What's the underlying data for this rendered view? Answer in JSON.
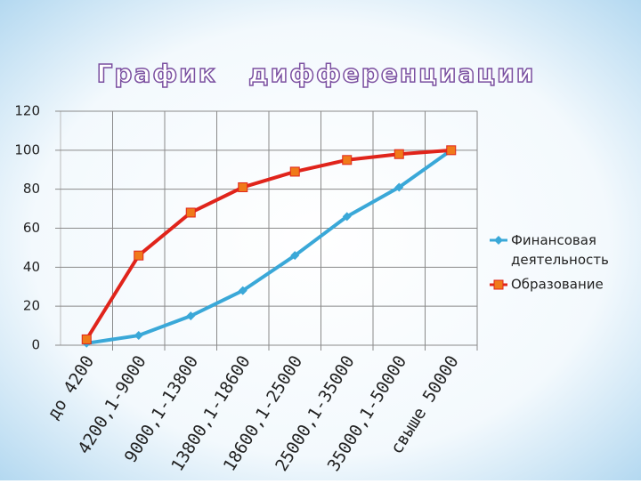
{
  "chart_data": {
    "type": "line",
    "title": "График   дифференциации",
    "categories": [
      "до 4200",
      "4200,1-9000",
      "9000,1-13800",
      "13800,1-18600",
      "18600,1-25000",
      "25000,1-35000",
      "35000,1-50000",
      "свыше 50000"
    ],
    "series": [
      {
        "name": "Финансовая деятельность",
        "color": "#3aa8d8",
        "marker": "diamond",
        "values": [
          1,
          5,
          15,
          28,
          46,
          66,
          81,
          100
        ]
      },
      {
        "name": "Образование",
        "color": "#e0241b",
        "marker": "square",
        "values": [
          3,
          46,
          68,
          81,
          89,
          95,
          98,
          100
        ]
      }
    ],
    "ylim": [
      0,
      120
    ],
    "yticks": [
      0,
      20,
      40,
      60,
      80,
      100,
      120
    ],
    "grid": true,
    "legend": "right"
  }
}
